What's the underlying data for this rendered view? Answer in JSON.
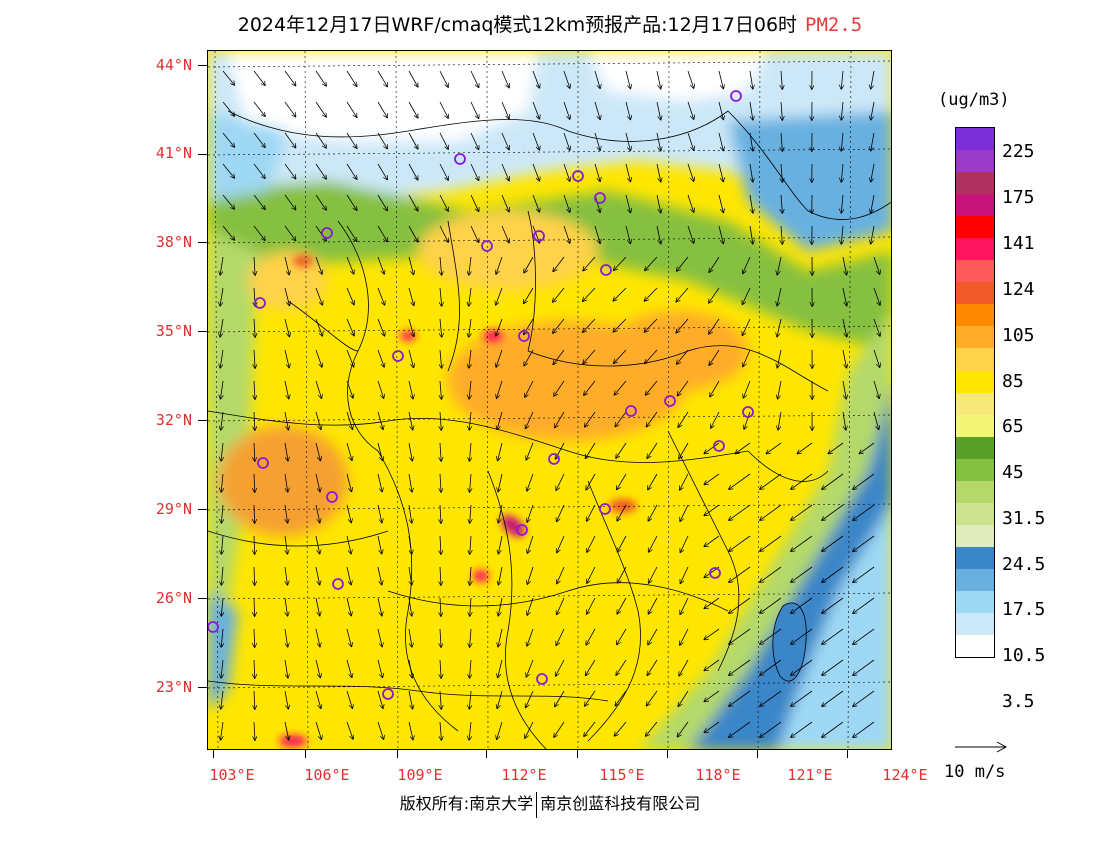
{
  "title": {
    "text": "2024年12月17日WRF/cmaq模式12km预报产品:12月17日06时",
    "pollutant": "PM2.5"
  },
  "axes": {
    "lat_labels": [
      "44°N",
      "41°N",
      "38°N",
      "35°N",
      "32°N",
      "29°N",
      "26°N",
      "23°N"
    ],
    "lon_labels": [
      "103°E",
      "106°E",
      "109°E",
      "112°E",
      "115°E",
      "118°E",
      "121°E",
      "124°E"
    ],
    "label_color": "#e03030"
  },
  "legend": {
    "unit": "(ug/m3)",
    "labels": [
      "225",
      "175",
      "141",
      "124",
      "105",
      "85",
      "65",
      "45",
      "31.5",
      "24.5",
      "17.5",
      "10.5",
      "3.5"
    ],
    "colors": [
      "#7b2fd6",
      "#9a3ac9",
      "#b03060",
      "#c8147a",
      "#ff0000",
      "#ff1460",
      "#ff5a5a",
      "#f05a28",
      "#ff8a00",
      "#ffac2a",
      "#ffd24a",
      "#ffe600",
      "#f7e87a",
      "#f2f575",
      "#5aa028",
      "#86c040",
      "#b4d96a",
      "#cde28e",
      "#e0ecbc",
      "#3a86c8",
      "#68b0e0",
      "#9ed8f4",
      "#cce8f8",
      "#ffffff"
    ]
  },
  "wind": {
    "reference_label": "10 m/s"
  },
  "cities": [
    {
      "name": "city-marker"
    }
  ],
  "footer": {
    "left": "版权所有:南京大学",
    "right": "南京创蓝科技有限公司"
  }
}
